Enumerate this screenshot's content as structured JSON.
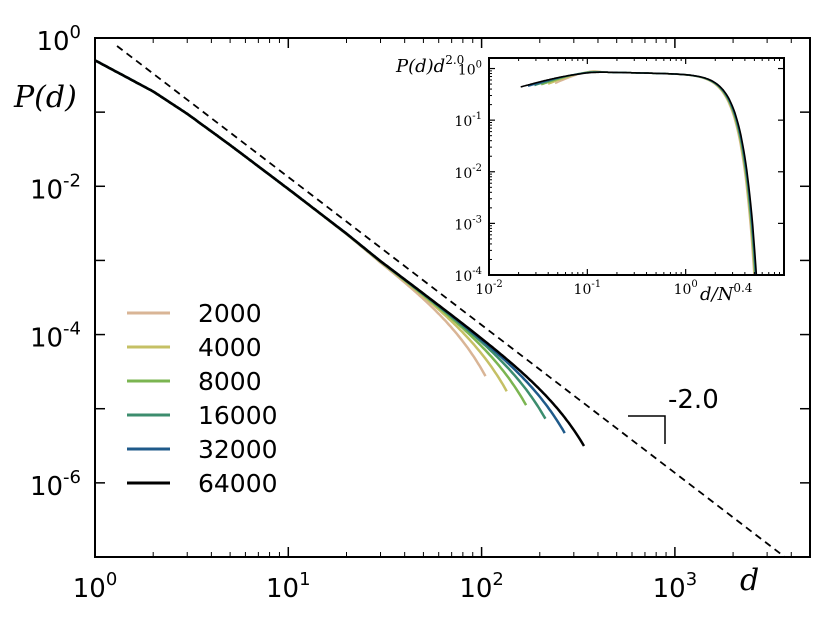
{
  "chart_data": [
    {
      "type": "line",
      "scale": "log-log",
      "xlabel": "d",
      "ylabel": "P(d)",
      "xlim": [
        1,
        5000
      ],
      "ylim": [
        1e-07,
        1
      ],
      "x_ticks": [
        {
          "base": "10",
          "exp": "0",
          "value": 1
        },
        {
          "base": "10",
          "exp": "1",
          "value": 10
        },
        {
          "base": "10",
          "exp": "2",
          "value": 100
        },
        {
          "base": "10",
          "exp": "3",
          "value": 1000
        }
      ],
      "y_ticks": [
        {
          "base": "10",
          "exp": "0",
          "value": 1
        },
        {
          "base": "10",
          "exp": "-2",
          "value": 0.01
        },
        {
          "base": "10",
          "exp": "-4",
          "value": 0.0001
        },
        {
          "base": "10",
          "exp": "-6",
          "value": 1e-06
        }
      ],
      "legend_position": "bottom-left",
      "reference_line": {
        "style": "dashed",
        "slope": -2.0,
        "x": [
          1.3,
          3800
        ],
        "y": [
          0.78,
          9.5e-08
        ]
      },
      "slope_label": "-2.0",
      "series": [
        {
          "name": "2000",
          "color": "#d9b596",
          "cutoff": 100,
          "end_x": 105
        },
        {
          "name": "4000",
          "color": "#c5c065",
          "cutoff": 130,
          "end_x": 135
        },
        {
          "name": "8000",
          "color": "#7bb551",
          "cutoff": 165,
          "end_x": 170
        },
        {
          "name": "16000",
          "color": "#3c8d6e",
          "cutoff": 210,
          "end_x": 215
        },
        {
          "name": "32000",
          "color": "#1f5a8a",
          "cutoff": 265,
          "end_x": 270
        },
        {
          "name": "64000",
          "color": "#000000",
          "cutoff": 340,
          "end_x": 345
        }
      ],
      "master_curve": {
        "x": [
          1,
          2,
          3,
          5,
          10,
          20,
          30,
          50
        ],
        "y": [
          0.5,
          0.19,
          0.095,
          0.036,
          0.0092,
          0.0023,
          0.00098,
          0.00036
        ]
      }
    },
    {
      "type": "line",
      "scale": "log-log",
      "inset": true,
      "position": "top-right",
      "xlabel": "d/N",
      "xlabel_exp": "0.4",
      "ylabel": "P(d)d",
      "ylabel_exp": "2.0",
      "xlim": [
        0.01,
        10
      ],
      "ylim": [
        0.0001,
        1.6
      ],
      "x_ticks": [
        {
          "base": "10",
          "exp": "-2",
          "value": 0.01
        },
        {
          "base": "10",
          "exp": "-1",
          "value": 0.1
        },
        {
          "base": "10",
          "exp": "0",
          "value": 1
        }
      ],
      "y_ticks": [
        {
          "base": "10",
          "exp": "0",
          "value": 1
        },
        {
          "base": "10",
          "exp": "-1",
          "value": 0.1
        },
        {
          "base": "10",
          "exp": "-2",
          "value": 0.01
        },
        {
          "base": "10",
          "exp": "-3",
          "value": 0.001
        },
        {
          "base": "10",
          "exp": "-4",
          "value": 0.0001
        }
      ],
      "series": [
        {
          "name": "2000",
          "color": "#d9b596",
          "x_start": 0.047
        },
        {
          "name": "4000",
          "color": "#c5c065",
          "x_start": 0.04
        },
        {
          "name": "8000",
          "color": "#7bb551",
          "x_start": 0.034
        },
        {
          "name": "16000",
          "color": "#3c8d6e",
          "x_start": 0.029
        },
        {
          "name": "32000",
          "color": "#1f5a8a",
          "x_start": 0.025
        },
        {
          "name": "64000",
          "color": "#000000",
          "x_start": 0.021
        }
      ]
    }
  ]
}
